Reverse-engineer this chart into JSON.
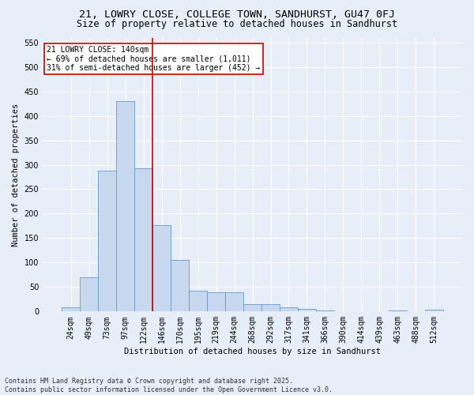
{
  "title_line1": "21, LOWRY CLOSE, COLLEGE TOWN, SANDHURST, GU47 0FJ",
  "title_line2": "Size of property relative to detached houses in Sandhurst",
  "xlabel": "Distribution of detached houses by size in Sandhurst",
  "ylabel": "Number of detached properties",
  "footer_line1": "Contains HM Land Registry data © Crown copyright and database right 2025.",
  "footer_line2": "Contains public sector information licensed under the Open Government Licence v3.0.",
  "categories": [
    "24sqm",
    "49sqm",
    "73sqm",
    "97sqm",
    "122sqm",
    "146sqm",
    "170sqm",
    "195sqm",
    "219sqm",
    "244sqm",
    "268sqm",
    "292sqm",
    "317sqm",
    "341sqm",
    "366sqm",
    "390sqm",
    "414sqm",
    "439sqm",
    "463sqm",
    "488sqm",
    "512sqm"
  ],
  "values": [
    8,
    70,
    288,
    430,
    292,
    177,
    105,
    43,
    40,
    40,
    15,
    15,
    8,
    5,
    2,
    0,
    0,
    0,
    2,
    0,
    3
  ],
  "bar_color": "#c8d8ee",
  "bar_edge_color": "#6699cc",
  "background_color": "#e8eef8",
  "grid_color": "#ffffff",
  "vline_color": "#cc0000",
  "vline_pos": 4.5,
  "annotation_text": "21 LOWRY CLOSE: 140sqm\n← 69% of detached houses are smaller (1,011)\n31% of semi-detached houses are larger (452) →",
  "annotation_box_facecolor": "#ffffff",
  "annotation_box_edgecolor": "#cc0000",
  "ylim": [
    0,
    560
  ],
  "yticks": [
    0,
    50,
    100,
    150,
    200,
    250,
    300,
    350,
    400,
    450,
    500,
    550
  ],
  "title_fontsize": 9.5,
  "subtitle_fontsize": 8.5,
  "axis_label_fontsize": 7.5,
  "tick_fontsize": 7,
  "annotation_fontsize": 7,
  "footer_fontsize": 6
}
